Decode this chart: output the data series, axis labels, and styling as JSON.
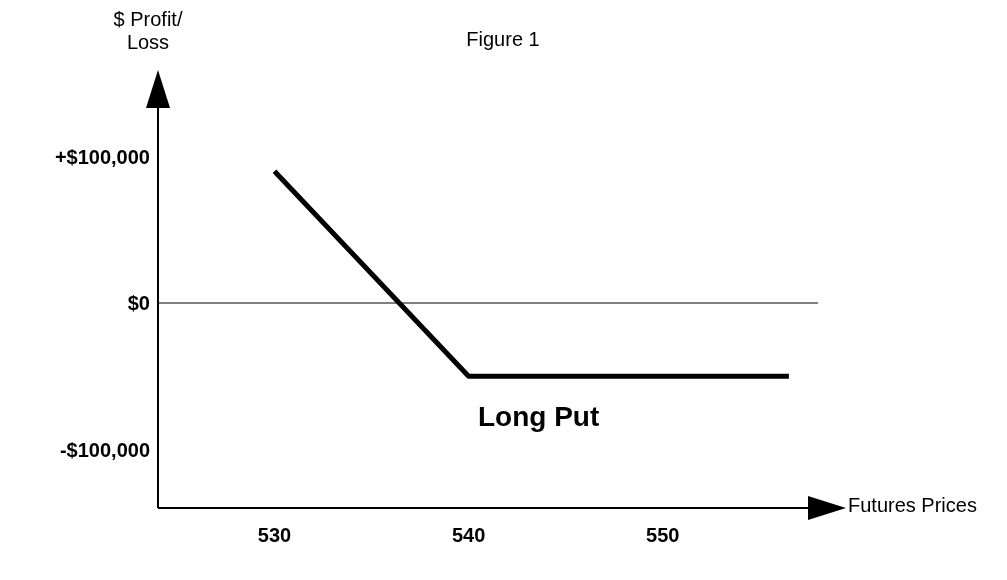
{
  "chart_data": {
    "type": "line",
    "title": "Figure 1",
    "ylabel": "$ Profit/ Loss",
    "xlabel": "Futures Prices",
    "x": [
      530,
      540,
      556.5
    ],
    "series": [
      {
        "name": "Long Put",
        "color": "#000000",
        "values": [
          90000,
          -50000,
          -50000
        ]
      }
    ],
    "xlim": [
      524,
      558
    ],
    "xticks": [
      530,
      540,
      550
    ],
    "ylim": [
      -140000,
      140000
    ],
    "yticks": [
      {
        "value": 100000,
        "label": "+$100,000"
      },
      {
        "value": 0,
        "label": "$0"
      },
      {
        "value": -100000,
        "label": "-$100,000"
      }
    ],
    "ref_lines": [
      {
        "axis": "y",
        "value": 0,
        "label": null,
        "color": "#000000"
      }
    ],
    "grid": false,
    "legend": false,
    "marker": "none",
    "line_style": "solid"
  }
}
